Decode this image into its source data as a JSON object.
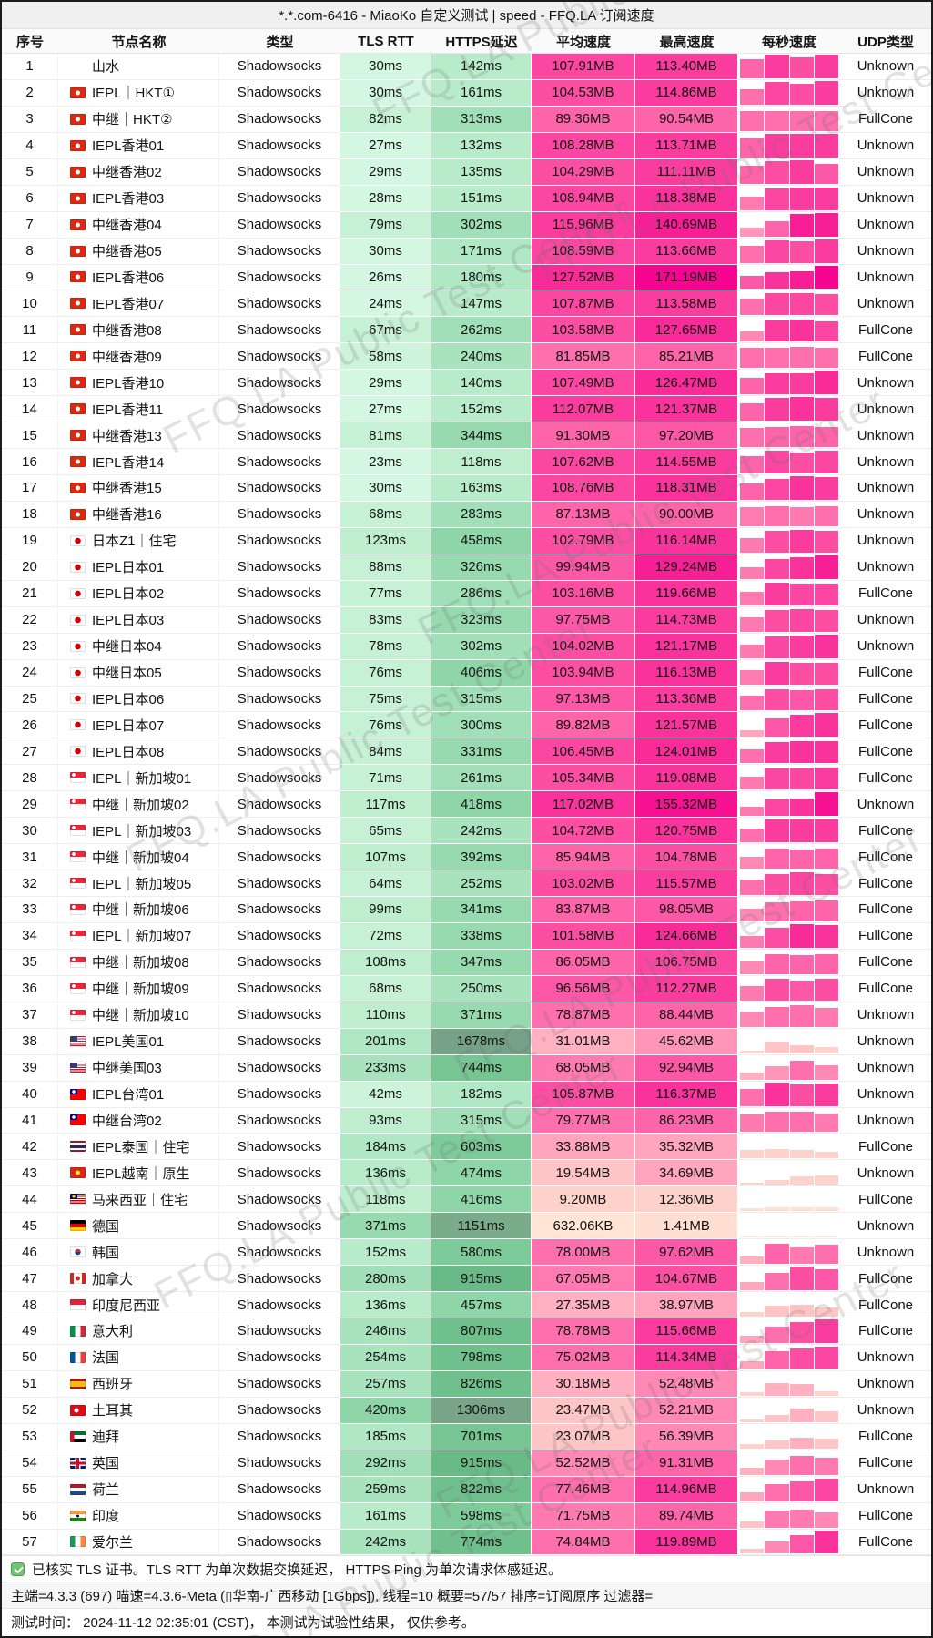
{
  "window_title": "*.*.com-6416 - MiaoKo 自定义测试 | speed - FFQ.LA 订阅速度",
  "watermark": "FFQ.LA Public Test Center",
  "header": {
    "seq": "序号",
    "name": "节点名称",
    "type": "类型",
    "tls": "TLS RTT",
    "https": "HTTPS延迟",
    "avg": "平均速度",
    "max": "最高速度",
    "persec": "每秒速度",
    "udp": "UDP类型"
  },
  "colors": {
    "latency_scale_low": "#d4f7e1",
    "latency_scale_high": "#76a287",
    "speed_scale_low": "#ffe5d6",
    "speed_scale_high": "#f50590",
    "check_green": "#72c472"
  },
  "rows": [
    {
      "seq": "1",
      "flag": "",
      "name": "山水",
      "type": "Shadowsocks",
      "tls": "30ms",
      "https": "142ms",
      "avg": "107.91MB",
      "max": "113.40MB",
      "bars": [
        0.8,
        1,
        0.9,
        1
      ],
      "udp": "Unknown"
    },
    {
      "seq": "2",
      "flag": "hk",
      "name": "IEPL｜HKT①",
      "type": "Shadowsocks",
      "tls": "30ms",
      "https": "161ms",
      "avg": "104.53MB",
      "max": "114.86MB",
      "bars": [
        0.65,
        0.95,
        0.9,
        1
      ],
      "udp": "Unknown"
    },
    {
      "seq": "3",
      "flag": "hk",
      "name": "中继｜HKT②",
      "type": "Shadowsocks",
      "tls": "82ms",
      "https": "313ms",
      "avg": "89.36MB",
      "max": "90.54MB",
      "bars": [
        0.85,
        0.85,
        0.85,
        0.85
      ],
      "udp": "FullCone"
    },
    {
      "seq": "4",
      "flag": "hk",
      "name": "IEPL香港01",
      "type": "Shadowsocks",
      "tls": "27ms",
      "https": "132ms",
      "avg": "108.28MB",
      "max": "113.71MB",
      "bars": [
        0.8,
        1,
        1,
        1
      ],
      "udp": "Unknown"
    },
    {
      "seq": "5",
      "flag": "hk",
      "name": "中继香港02",
      "type": "Shadowsocks",
      "tls": "29ms",
      "https": "135ms",
      "avg": "104.29MB",
      "max": "111.11MB",
      "bars": [
        0.75,
        0.95,
        1,
        0.85
      ],
      "udp": "Unknown"
    },
    {
      "seq": "6",
      "flag": "hk",
      "name": "IEPL香港03",
      "type": "Shadowsocks",
      "tls": "28ms",
      "https": "151ms",
      "avg": "108.94MB",
      "max": "118.38MB",
      "bars": [
        0.55,
        0.9,
        0.95,
        0.95
      ],
      "udp": "Unknown"
    },
    {
      "seq": "7",
      "flag": "hk",
      "name": "中继香港04",
      "type": "Shadowsocks",
      "tls": "79ms",
      "https": "302ms",
      "avg": "115.96MB",
      "max": "140.69MB",
      "bars": [
        0.35,
        0.65,
        0.95,
        1
      ],
      "udp": "Unknown"
    },
    {
      "seq": "8",
      "flag": "hk",
      "name": "中继香港05",
      "type": "Shadowsocks",
      "tls": "30ms",
      "https": "171ms",
      "avg": "108.59MB",
      "max": "113.66MB",
      "bars": [
        0.7,
        0.95,
        0.9,
        1
      ],
      "udp": "Unknown"
    },
    {
      "seq": "9",
      "flag": "hk",
      "name": "IEPL香港06",
      "type": "Shadowsocks",
      "tls": "26ms",
      "https": "180ms",
      "avg": "127.52MB",
      "max": "171.19MB",
      "bars": [
        0.55,
        0.7,
        0.75,
        1
      ],
      "udp": "Unknown"
    },
    {
      "seq": "10",
      "flag": "hk",
      "name": "IEPL香港07",
      "type": "Shadowsocks",
      "tls": "24ms",
      "https": "147ms",
      "avg": "107.87MB",
      "max": "113.58MB",
      "bars": [
        0.7,
        0.95,
        0.95,
        0.9
      ],
      "udp": "Unknown"
    },
    {
      "seq": "11",
      "flag": "hk",
      "name": "中继香港08",
      "type": "Shadowsocks",
      "tls": "67ms",
      "https": "262ms",
      "avg": "103.58MB",
      "max": "127.65MB",
      "bars": [
        0.45,
        0.9,
        0.95,
        0.85
      ],
      "udp": "FullCone"
    },
    {
      "seq": "12",
      "flag": "hk",
      "name": "中继香港09",
      "type": "Shadowsocks",
      "tls": "58ms",
      "https": "240ms",
      "avg": "81.85MB",
      "max": "85.21MB",
      "bars": [
        0.85,
        0.85,
        0.9,
        0.85
      ],
      "udp": "FullCone"
    },
    {
      "seq": "13",
      "flag": "hk",
      "name": "IEPL香港10",
      "type": "Shadowsocks",
      "tls": "29ms",
      "https": "140ms",
      "avg": "107.49MB",
      "max": "126.47MB",
      "bars": [
        0.7,
        0.9,
        0.9,
        1
      ],
      "udp": "Unknown"
    },
    {
      "seq": "14",
      "flag": "hk",
      "name": "IEPL香港11",
      "type": "Shadowsocks",
      "tls": "27ms",
      "https": "152ms",
      "avg": "112.07MB",
      "max": "121.37MB",
      "bars": [
        0.75,
        0.95,
        1,
        0.95
      ],
      "udp": "Unknown"
    },
    {
      "seq": "15",
      "flag": "hk",
      "name": "中继香港13",
      "type": "Shadowsocks",
      "tls": "81ms",
      "https": "344ms",
      "avg": "91.30MB",
      "max": "97.20MB",
      "bars": [
        0.8,
        0.85,
        0.9,
        0.85
      ],
      "udp": "Unknown"
    },
    {
      "seq": "16",
      "flag": "hk",
      "name": "IEPL香港14",
      "type": "Shadowsocks",
      "tls": "23ms",
      "https": "118ms",
      "avg": "107.62MB",
      "max": "114.55MB",
      "bars": [
        0.75,
        0.95,
        0.9,
        0.95
      ],
      "udp": "Unknown"
    },
    {
      "seq": "17",
      "flag": "hk",
      "name": "中继香港15",
      "type": "Shadowsocks",
      "tls": "30ms",
      "https": "163ms",
      "avg": "108.76MB",
      "max": "118.31MB",
      "bars": [
        0.7,
        0.9,
        1,
        0.95
      ],
      "udp": "Unknown"
    },
    {
      "seq": "18",
      "flag": "hk",
      "name": "中继香港16",
      "type": "Shadowsocks",
      "tls": "68ms",
      "https": "283ms",
      "avg": "87.13MB",
      "max": "90.00MB",
      "bars": [
        0.8,
        0.85,
        0.8,
        0.85
      ],
      "udp": "Unknown"
    },
    {
      "seq": "19",
      "flag": "jp",
      "name": "日本Z1｜住宅",
      "type": "Shadowsocks",
      "tls": "123ms",
      "https": "458ms",
      "avg": "102.79MB",
      "max": "116.14MB",
      "bars": [
        0.6,
        0.9,
        0.95,
        0.9
      ],
      "udp": "Unknown"
    },
    {
      "seq": "20",
      "flag": "jp",
      "name": "IEPL日本01",
      "type": "Shadowsocks",
      "tls": "88ms",
      "https": "326ms",
      "avg": "99.94MB",
      "max": "129.24MB",
      "bars": [
        0.5,
        0.85,
        0.9,
        1
      ],
      "udp": "Unknown"
    },
    {
      "seq": "21",
      "flag": "jp",
      "name": "IEPL日本02",
      "type": "Shadowsocks",
      "tls": "77ms",
      "https": "286ms",
      "avg": "103.16MB",
      "max": "119.66MB",
      "bars": [
        0.55,
        0.95,
        0.9,
        0.9
      ],
      "udp": "FullCone"
    },
    {
      "seq": "22",
      "flag": "jp",
      "name": "IEPL日本03",
      "type": "Shadowsocks",
      "tls": "83ms",
      "https": "323ms",
      "avg": "97.75MB",
      "max": "114.73MB",
      "bars": [
        0.6,
        0.9,
        0.95,
        0.9
      ],
      "udp": "Unknown"
    },
    {
      "seq": "23",
      "flag": "jp",
      "name": "中继日本04",
      "type": "Shadowsocks",
      "tls": "78ms",
      "https": "302ms",
      "avg": "104.02MB",
      "max": "121.17MB",
      "bars": [
        0.55,
        0.9,
        0.95,
        1
      ],
      "udp": "Unknown"
    },
    {
      "seq": "24",
      "flag": "jp",
      "name": "中继日本05",
      "type": "Shadowsocks",
      "tls": "76ms",
      "https": "406ms",
      "avg": "103.94MB",
      "max": "116.13MB",
      "bars": [
        0.6,
        0.95,
        0.9,
        0.9
      ],
      "udp": "FullCone"
    },
    {
      "seq": "25",
      "flag": "jp",
      "name": "IEPL日本06",
      "type": "Shadowsocks",
      "tls": "75ms",
      "https": "315ms",
      "avg": "97.13MB",
      "max": "113.36MB",
      "bars": [
        0.65,
        0.9,
        0.85,
        0.9
      ],
      "udp": "FullCone"
    },
    {
      "seq": "26",
      "flag": "jp",
      "name": "IEPL日本07",
      "type": "Shadowsocks",
      "tls": "76ms",
      "https": "300ms",
      "avg": "89.82MB",
      "max": "121.57MB",
      "bars": [
        0.3,
        0.8,
        0.95,
        1
      ],
      "udp": "FullCone"
    },
    {
      "seq": "27",
      "flag": "jp",
      "name": "IEPL日本08",
      "type": "Shadowsocks",
      "tls": "84ms",
      "https": "331ms",
      "avg": "106.45MB",
      "max": "124.01MB",
      "bars": [
        0.6,
        0.9,
        0.95,
        0.95
      ],
      "udp": "FullCone"
    },
    {
      "seq": "28",
      "flag": "sg",
      "name": "IEPL｜新加坡01",
      "type": "Shadowsocks",
      "tls": "71ms",
      "https": "261ms",
      "avg": "105.34MB",
      "max": "119.08MB",
      "bars": [
        0.55,
        0.9,
        0.9,
        0.95
      ],
      "udp": "FullCone"
    },
    {
      "seq": "29",
      "flag": "sg",
      "name": "中继｜新加坡02",
      "type": "Shadowsocks",
      "tls": "117ms",
      "https": "418ms",
      "avg": "117.02MB",
      "max": "155.32MB",
      "bars": [
        0.4,
        0.7,
        0.75,
        1
      ],
      "udp": "Unknown"
    },
    {
      "seq": "30",
      "flag": "sg",
      "name": "IEPL｜新加坡03",
      "type": "Shadowsocks",
      "tls": "65ms",
      "https": "242ms",
      "avg": "104.72MB",
      "max": "120.75MB",
      "bars": [
        0.6,
        0.95,
        0.95,
        0.95
      ],
      "udp": "FullCone"
    },
    {
      "seq": "31",
      "flag": "sg",
      "name": "中继｜新加坡04",
      "type": "Shadowsocks",
      "tls": "107ms",
      "https": "392ms",
      "avg": "85.94MB",
      "max": "104.78MB",
      "bars": [
        0.5,
        0.85,
        0.8,
        0.85
      ],
      "udp": "FullCone"
    },
    {
      "seq": "32",
      "flag": "sg",
      "name": "IEPL｜新加坡05",
      "type": "Shadowsocks",
      "tls": "64ms",
      "https": "252ms",
      "avg": "103.02MB",
      "max": "115.57MB",
      "bars": [
        0.65,
        0.9,
        0.95,
        0.9
      ],
      "udp": "FullCone"
    },
    {
      "seq": "33",
      "flag": "sg",
      "name": "中继｜新加坡06",
      "type": "Shadowsocks",
      "tls": "99ms",
      "https": "341ms",
      "avg": "83.87MB",
      "max": "98.05MB",
      "bars": [
        0.55,
        0.8,
        0.85,
        0.9
      ],
      "udp": "FullCone"
    },
    {
      "seq": "34",
      "flag": "sg",
      "name": "IEPL｜新加坡07",
      "type": "Shadowsocks",
      "tls": "72ms",
      "https": "338ms",
      "avg": "101.58MB",
      "max": "124.66MB",
      "bars": [
        0.5,
        0.85,
        1,
        0.95
      ],
      "udp": "FullCone"
    },
    {
      "seq": "35",
      "flag": "sg",
      "name": "中继｜新加坡08",
      "type": "Shadowsocks",
      "tls": "108ms",
      "https": "347ms",
      "avg": "86.05MB",
      "max": "106.75MB",
      "bars": [
        0.55,
        0.85,
        0.8,
        0.85
      ],
      "udp": "FullCone"
    },
    {
      "seq": "36",
      "flag": "sg",
      "name": "中继｜新加坡09",
      "type": "Shadowsocks",
      "tls": "68ms",
      "https": "250ms",
      "avg": "96.56MB",
      "max": "112.27MB",
      "bars": [
        0.6,
        0.9,
        0.85,
        0.9
      ],
      "udp": "FullCone"
    },
    {
      "seq": "37",
      "flag": "sg",
      "name": "中继｜新加坡10",
      "type": "Shadowsocks",
      "tls": "110ms",
      "https": "371ms",
      "avg": "78.87MB",
      "max": "88.44MB",
      "bars": [
        0.65,
        0.85,
        0.9,
        0.8
      ],
      "udp": "Unknown"
    },
    {
      "seq": "38",
      "flag": "us",
      "name": "IEPL美国01",
      "type": "Shadowsocks",
      "tls": "201ms",
      "https": "1678ms",
      "avg": "31.01MB",
      "max": "45.62MB",
      "bars": [
        0.12,
        0.5,
        0.35,
        0.25
      ],
      "udp": "Unknown"
    },
    {
      "seq": "39",
      "flag": "us",
      "name": "中继美国03",
      "type": "Shadowsocks",
      "tls": "233ms",
      "https": "744ms",
      "avg": "68.05MB",
      "max": "92.94MB",
      "bars": [
        0.3,
        0.55,
        0.8,
        0.6
      ],
      "udp": "Unknown"
    },
    {
      "seq": "40",
      "flag": "tw",
      "name": "IEPL台湾01",
      "type": "Shadowsocks",
      "tls": "42ms",
      "https": "182ms",
      "avg": "105.87MB",
      "max": "116.37MB",
      "bars": [
        0.7,
        1,
        0.9,
        0.95
      ],
      "udp": "Unknown"
    },
    {
      "seq": "41",
      "flag": "tw",
      "name": "中继台湾02",
      "type": "Shadowsocks",
      "tls": "93ms",
      "https": "315ms",
      "avg": "79.77MB",
      "max": "86.23MB",
      "bars": [
        0.75,
        0.85,
        0.85,
        0.8
      ],
      "udp": "Unknown"
    },
    {
      "seq": "42",
      "flag": "th",
      "name": "IEPL泰国｜住宅",
      "type": "Shadowsocks",
      "tls": "184ms",
      "https": "603ms",
      "avg": "33.88MB",
      "max": "35.32MB",
      "bars": [
        0.35,
        0.4,
        0.35,
        0.3
      ],
      "udp": "FullCone"
    },
    {
      "seq": "43",
      "flag": "vn",
      "name": "IEPL越南｜原生",
      "type": "Shadowsocks",
      "tls": "136ms",
      "https": "474ms",
      "avg": "19.54MB",
      "max": "34.69MB",
      "bars": [
        0.1,
        0.2,
        0.35,
        0.4
      ],
      "udp": "Unknown"
    },
    {
      "seq": "44",
      "flag": "my",
      "name": "马来西亚｜住宅",
      "type": "Shadowsocks",
      "tls": "118ms",
      "https": "416ms",
      "avg": "9.20MB",
      "max": "12.36MB",
      "bars": [
        0.12,
        0.15,
        0.15,
        0.15
      ],
      "udp": "FullCone"
    },
    {
      "seq": "45",
      "flag": "de",
      "name": "德国",
      "type": "Shadowsocks",
      "tls": "371ms",
      "https": "1151ms",
      "avg": "632.06KB",
      "max": "1.41MB",
      "bars": [
        0.04,
        0.06,
        0.06,
        0.05
      ],
      "udp": "Unknown"
    },
    {
      "seq": "46",
      "flag": "kr",
      "name": "韩国",
      "type": "Shadowsocks",
      "tls": "152ms",
      "https": "580ms",
      "avg": "78.00MB",
      "max": "97.62MB",
      "bars": [
        0.3,
        0.85,
        0.7,
        0.8
      ],
      "udp": "Unknown"
    },
    {
      "seq": "47",
      "flag": "ca",
      "name": "加拿大",
      "type": "Shadowsocks",
      "tls": "280ms",
      "https": "915ms",
      "avg": "67.05MB",
      "max": "104.67MB",
      "bars": [
        0.35,
        0.75,
        1,
        0.9
      ],
      "udp": "FullCone"
    },
    {
      "seq": "48",
      "flag": "id",
      "name": "印度尼西亚",
      "type": "Shadowsocks",
      "tls": "136ms",
      "https": "457ms",
      "avg": "27.35MB",
      "max": "38.97MB",
      "bars": [
        0.2,
        0.45,
        0.5,
        0.4
      ],
      "udp": "FullCone"
    },
    {
      "seq": "49",
      "flag": "it",
      "name": "意大利",
      "type": "Shadowsocks",
      "tls": "246ms",
      "https": "807ms",
      "avg": "78.78MB",
      "max": "115.66MB",
      "bars": [
        0.3,
        0.7,
        0.9,
        1
      ],
      "udp": "FullCone"
    },
    {
      "seq": "50",
      "flag": "fr",
      "name": "法国",
      "type": "Shadowsocks",
      "tls": "254ms",
      "https": "798ms",
      "avg": "75.02MB",
      "max": "114.34MB",
      "bars": [
        0.35,
        0.75,
        0.9,
        0.95
      ],
      "udp": "Unknown"
    },
    {
      "seq": "51",
      "flag": "es",
      "name": "西班牙",
      "type": "Shadowsocks",
      "tls": "257ms",
      "https": "826ms",
      "avg": "30.18MB",
      "max": "52.48MB",
      "bars": [
        0.15,
        0.55,
        0.5,
        0.2
      ],
      "udp": "Unknown"
    },
    {
      "seq": "52",
      "flag": "tr",
      "name": "土耳其",
      "type": "Shadowsocks",
      "tls": "420ms",
      "https": "1306ms",
      "avg": "23.47MB",
      "max": "52.21MB",
      "bars": [
        0.1,
        0.3,
        0.55,
        0.45
      ],
      "udp": "Unknown"
    },
    {
      "seq": "53",
      "flag": "ae",
      "name": "迪拜",
      "type": "Shadowsocks",
      "tls": "185ms",
      "https": "701ms",
      "avg": "23.07MB",
      "max": "56.39MB",
      "bars": [
        0.2,
        0.35,
        0.45,
        0.4
      ],
      "udp": "FullCone"
    },
    {
      "seq": "54",
      "flag": "gb",
      "name": "英国",
      "type": "Shadowsocks",
      "tls": "292ms",
      "https": "915ms",
      "avg": "52.52MB",
      "max": "91.31MB",
      "bars": [
        0.3,
        0.65,
        0.8,
        0.7
      ],
      "udp": "FullCone"
    },
    {
      "seq": "55",
      "flag": "nl",
      "name": "荷兰",
      "type": "Shadowsocks",
      "tls": "259ms",
      "https": "822ms",
      "avg": "77.46MB",
      "max": "114.96MB",
      "bars": [
        0.35,
        0.7,
        0.85,
        0.95
      ],
      "udp": "Unknown"
    },
    {
      "seq": "56",
      "flag": "in",
      "name": "印度",
      "type": "Shadowsocks",
      "tls": "161ms",
      "https": "598ms",
      "avg": "71.75MB",
      "max": "89.74MB",
      "bars": [
        0.25,
        0.7,
        0.75,
        0.65
      ],
      "udp": "FullCone"
    },
    {
      "seq": "57",
      "flag": "ie",
      "name": "爱尔兰",
      "type": "Shadowsocks",
      "tls": "242ms",
      "https": "774ms",
      "avg": "74.84MB",
      "max": "119.89MB",
      "bars": [
        0.2,
        0.5,
        0.8,
        1
      ],
      "udp": "FullCone"
    }
  ],
  "footer": {
    "note_check": "已核实 TLS 证书。TLS RTT 为单次数据交换延迟， HTTPS Ping 为单次请求体感延迟。",
    "meta": "主端=4.3.3 (697) 喵速=4.3.6-Meta (▯华南-广西移动 [1Gbps]), 线程=10 概要=57/57 排序=订阅原序 过滤器=",
    "time": "测试时间： 2024-11-12 02:35:01 (CST)， 本测试为试验性结果， 仅供参考。"
  }
}
